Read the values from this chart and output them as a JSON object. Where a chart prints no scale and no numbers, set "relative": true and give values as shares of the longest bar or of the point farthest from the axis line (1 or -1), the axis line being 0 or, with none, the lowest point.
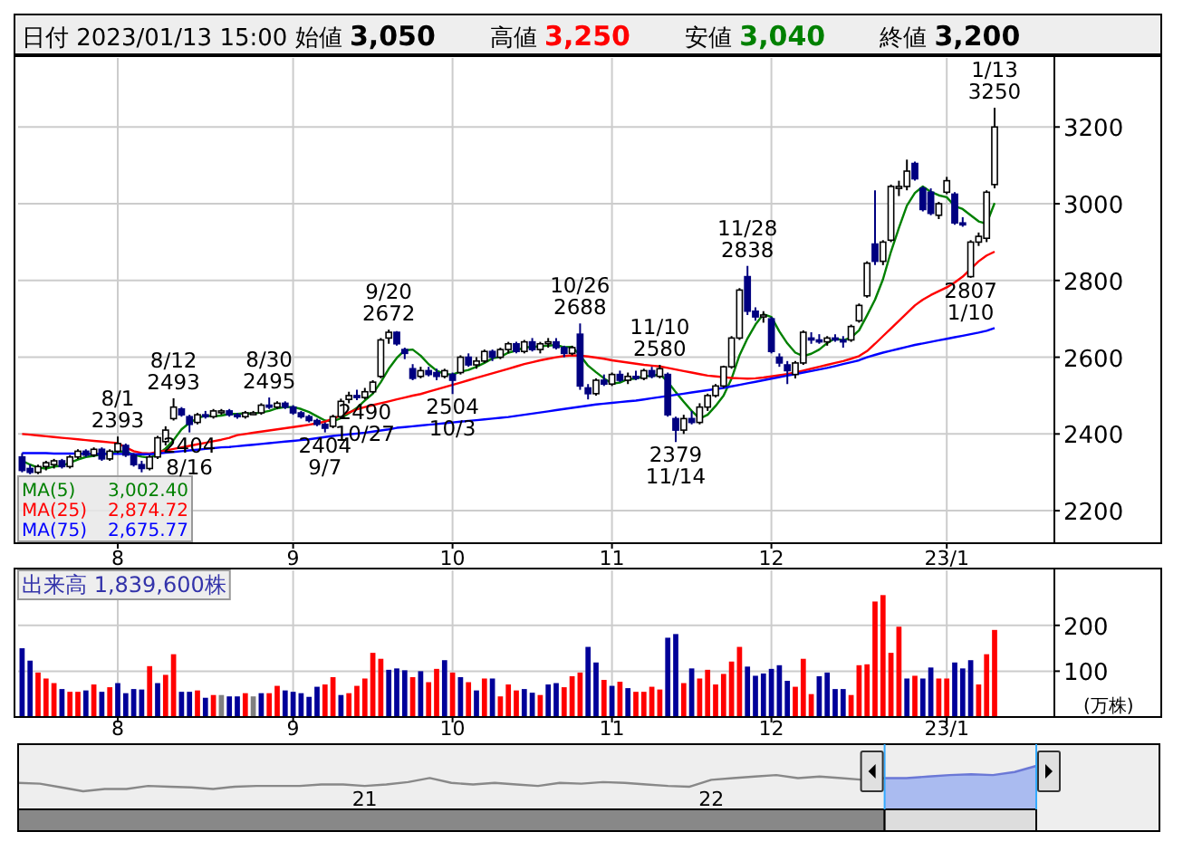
{
  "chart_data": [
    {
      "type": "candlestick",
      "title": "日付 2023/01/13 15:00 始値 3,050 高値 3,250 安値 3,040 終値 3,200",
      "categories": [
        null,
        null,
        null,
        null,
        null,
        null,
        null,
        null,
        null,
        null,
        null,
        null,
        "8",
        null,
        null,
        null,
        null,
        null,
        null,
        null,
        null,
        null,
        null,
        null,
        null,
        null,
        null,
        null,
        null,
        null,
        null,
        null,
        null,
        null,
        "9",
        null,
        null,
        null,
        null,
        null,
        null,
        null,
        null,
        null,
        null,
        null,
        null,
        null,
        null,
        null,
        null,
        null,
        null,
        null,
        "10",
        null,
        null,
        null,
        null,
        null,
        null,
        null,
        null,
        null,
        null,
        null,
        null,
        null,
        null,
        null,
        null,
        null,
        null,
        null,
        "11",
        null,
        null,
        null,
        null,
        null,
        null,
        null,
        null,
        null,
        null,
        null,
        null,
        null,
        null,
        null,
        null,
        null,
        null,
        null,
        "12",
        null,
        null,
        null,
        null,
        null,
        null,
        null,
        null,
        null,
        null,
        null,
        null,
        null,
        null,
        null,
        null,
        null,
        null,
        null,
        null,
        null,
        "23/1",
        null,
        null,
        null,
        null,
        null,
        null
      ],
      "ohlc": [
        [
          2340,
          2350,
          2300,
          2305
        ],
        [
          2310,
          2320,
          2295,
          2300
        ],
        [
          2300,
          2320,
          2295,
          2315
        ],
        [
          2315,
          2330,
          2305,
          2325
        ],
        [
          2320,
          2335,
          2310,
          2330
        ],
        [
          2330,
          2335,
          2310,
          2315
        ],
        [
          2315,
          2345,
          2310,
          2340
        ],
        [
          2340,
          2360,
          2335,
          2355
        ],
        [
          2355,
          2360,
          2340,
          2345
        ],
        [
          2345,
          2365,
          2340,
          2360
        ],
        [
          2360,
          2365,
          2330,
          2335
        ],
        [
          2335,
          2360,
          2330,
          2355
        ],
        [
          2355,
          2393,
          2350,
          2375
        ],
        [
          2370,
          2375,
          2340,
          2345
        ],
        [
          2345,
          2350,
          2315,
          2320
        ],
        [
          2320,
          2330,
          2300,
          2310
        ],
        [
          2310,
          2345,
          2305,
          2340
        ],
        [
          2340,
          2395,
          2335,
          2390
        ],
        [
          2380,
          2420,
          2370,
          2410
        ],
        [
          2440,
          2493,
          2435,
          2470
        ],
        [
          2465,
          2470,
          2445,
          2450
        ],
        [
          2445,
          2450,
          2404,
          2425
        ],
        [
          2430,
          2455,
          2425,
          2450
        ],
        [
          2450,
          2460,
          2440,
          2445
        ],
        [
          2445,
          2465,
          2440,
          2460
        ],
        [
          2460,
          2465,
          2450,
          2460
        ],
        [
          2460,
          2465,
          2445,
          2450
        ],
        [
          2450,
          2455,
          2440,
          2445
        ],
        [
          2445,
          2460,
          2440,
          2455
        ],
        [
          2455,
          2460,
          2450,
          2455
        ],
        [
          2455,
          2480,
          2450,
          2475
        ],
        [
          2475,
          2495,
          2465,
          2470
        ],
        [
          2470,
          2485,
          2465,
          2480
        ],
        [
          2480,
          2485,
          2465,
          2470
        ],
        [
          2470,
          2475,
          2450,
          2455
        ],
        [
          2455,
          2460,
          2440,
          2445
        ],
        [
          2445,
          2450,
          2430,
          2435
        ],
        [
          2435,
          2440,
          2420,
          2425
        ],
        [
          2425,
          2430,
          2404,
          2415
        ],
        [
          2420,
          2450,
          2415,
          2445
        ],
        [
          2445,
          2492,
          2440,
          2485
        ],
        [
          2490,
          2510,
          2480,
          2500
        ],
        [
          2500,
          2515,
          2488,
          2495
        ],
        [
          2495,
          2520,
          2490,
          2510
        ],
        [
          2510,
          2540,
          2505,
          2535
        ],
        [
          2550,
          2650,
          2545,
          2645
        ],
        [
          2650,
          2672,
          2635,
          2665
        ],
        [
          2665,
          2668,
          2630,
          2635
        ],
        [
          2620,
          2625,
          2595,
          2610
        ],
        [
          2570,
          2582,
          2540,
          2545
        ],
        [
          2550,
          2575,
          2545,
          2565
        ],
        [
          2565,
          2575,
          2550,
          2555
        ],
        [
          2560,
          2570,
          2540,
          2550
        ],
        [
          2550,
          2570,
          2545,
          2565
        ],
        [
          2555,
          2560,
          2504,
          2540
        ],
        [
          2560,
          2605,
          2555,
          2600
        ],
        [
          2600,
          2610,
          2575,
          2580
        ],
        [
          2580,
          2600,
          2570,
          2590
        ],
        [
          2590,
          2620,
          2585,
          2615
        ],
        [
          2615,
          2620,
          2590,
          2600
        ],
        [
          2600,
          2625,
          2595,
          2620
        ],
        [
          2620,
          2640,
          2610,
          2635
        ],
        [
          2635,
          2640,
          2610,
          2615
        ],
        [
          2615,
          2645,
          2610,
          2640
        ],
        [
          2640,
          2650,
          2615,
          2620
        ],
        [
          2620,
          2640,
          2610,
          2635
        ],
        [
          2635,
          2650,
          2625,
          2640
        ],
        [
          2640,
          2650,
          2620,
          2625
        ],
        [
          2625,
          2630,
          2600,
          2610
        ],
        [
          2610,
          2630,
          2605,
          2625
        ],
        [
          2660,
          2688,
          2515,
          2525
        ],
        [
          2520,
          2530,
          2490,
          2505
        ],
        [
          2505,
          2545,
          2500,
          2540
        ],
        [
          2540,
          2555,
          2525,
          2530
        ],
        [
          2530,
          2560,
          2525,
          2555
        ],
        [
          2555,
          2565,
          2535,
          2540
        ],
        [
          2540,
          2560,
          2530,
          2550
        ],
        [
          2550,
          2565,
          2540,
          2545
        ],
        [
          2545,
          2570,
          2540,
          2565
        ],
        [
          2565,
          2575,
          2545,
          2550
        ],
        [
          2550,
          2580,
          2545,
          2570
        ],
        [
          2555,
          2560,
          2445,
          2450
        ],
        [
          2440,
          2445,
          2379,
          2410
        ],
        [
          2410,
          2450,
          2400,
          2440
        ],
        [
          2440,
          2460,
          2425,
          2430
        ],
        [
          2430,
          2480,
          2425,
          2470
        ],
        [
          2470,
          2505,
          2460,
          2500
        ],
        [
          2500,
          2530,
          2495,
          2525
        ],
        [
          2525,
          2578,
          2520,
          2575
        ],
        [
          2575,
          2655,
          2570,
          2650
        ],
        [
          2650,
          2780,
          2645,
          2775
        ],
        [
          2810,
          2838,
          2710,
          2720
        ],
        [
          2720,
          2730,
          2695,
          2705
        ],
        [
          2705,
          2720,
          2690,
          2710
        ],
        [
          2700,
          2705,
          2610,
          2615
        ],
        [
          2600,
          2610,
          2575,
          2585
        ],
        [
          2580,
          2590,
          2530,
          2565
        ],
        [
          2555,
          2590,
          2545,
          2585
        ],
        [
          2585,
          2670,
          2580,
          2665
        ],
        [
          2650,
          2665,
          2635,
          2645
        ],
        [
          2645,
          2660,
          2635,
          2640
        ],
        [
          2640,
          2655,
          2630,
          2650
        ],
        [
          2650,
          2660,
          2640,
          2645
        ],
        [
          2645,
          2655,
          2625,
          2640
        ],
        [
          2645,
          2685,
          2640,
          2680
        ],
        [
          2695,
          2740,
          2690,
          2735
        ],
        [
          2760,
          2850,
          2755,
          2845
        ],
        [
          2895,
          3035,
          2840,
          2850
        ],
        [
          2850,
          2905,
          2840,
          2900
        ],
        [
          2905,
          3050,
          2900,
          3045
        ],
        [
          3040,
          3060,
          3020,
          3045
        ],
        [
          3045,
          3115,
          3035,
          3085
        ],
        [
          3105,
          3110,
          3060,
          3065
        ],
        [
          3040,
          3045,
          2980,
          2985
        ],
        [
          3030,
          3040,
          2970,
          2975
        ],
        [
          2970,
          3005,
          2960,
          3000
        ],
        [
          3030,
          3070,
          3025,
          3060
        ],
        [
          3025,
          3030,
          2945,
          2950
        ],
        [
          2950,
          2965,
          2940,
          2945
        ],
        [
          2810,
          2905,
          2807,
          2900
        ],
        [
          2900,
          2925,
          2890,
          2915
        ],
        [
          2910,
          3035,
          2900,
          3030
        ],
        [
          3050,
          3250,
          3040,
          3200
        ]
      ],
      "series": [
        {
          "name": "MA(5)",
          "type": "line",
          "color": "#008000",
          "values": [
            2330,
            2320,
            2312,
            2310,
            2315,
            2317,
            2325,
            2333,
            2340,
            2343,
            2347,
            2350,
            2354,
            2354,
            2346,
            2341,
            2338,
            2347,
            2362,
            2384,
            2412,
            2429,
            2441,
            2448,
            2446,
            2448,
            2452,
            2452,
            2454,
            2453,
            2456,
            2460,
            2467,
            2470,
            2470,
            2465,
            2457,
            2446,
            2435,
            2433,
            2441,
            2454,
            2468,
            2487,
            2505,
            2535,
            2570,
            2598,
            2618,
            2620,
            2604,
            2582,
            2565,
            2556,
            2555,
            2562,
            2567,
            2575,
            2585,
            2597,
            2601,
            2612,
            2617,
            2626,
            2626,
            2629,
            2630,
            2632,
            2626,
            2627,
            2605,
            2578,
            2561,
            2545,
            2531,
            2534,
            2543,
            2544,
            2551,
            2551,
            2556,
            2536,
            2509,
            2484,
            2460,
            2440,
            2450,
            2473,
            2500,
            2544,
            2605,
            2649,
            2685,
            2712,
            2705,
            2667,
            2636,
            2612,
            2603,
            2609,
            2620,
            2637,
            2649,
            2644,
            2651,
            2670,
            2709,
            2750,
            2803,
            2875,
            2937,
            2995,
            3028,
            3045,
            3031,
            3022,
            3017,
            2994,
            2986,
            2970,
            2954,
            2948,
            3002
          ]
        },
        {
          "name": "MA(25)",
          "type": "line",
          "color": "#ff0000",
          "values": [
            2400,
            2398,
            2396,
            2394,
            2392,
            2390,
            2388,
            2386,
            2384,
            2382,
            2380,
            2378,
            2376,
            2365,
            2355,
            2350,
            2349,
            2353,
            2357,
            2361,
            2365,
            2369,
            2373,
            2377,
            2381,
            2385,
            2390,
            2397,
            2400,
            2403,
            2406,
            2409,
            2412,
            2415,
            2418,
            2421,
            2424,
            2428,
            2432,
            2440,
            2448,
            2456,
            2464,
            2470,
            2475,
            2480,
            2485,
            2490,
            2495,
            2500,
            2504,
            2510,
            2516,
            2522,
            2528,
            2534,
            2540,
            2546,
            2552,
            2558,
            2564,
            2570,
            2576,
            2582,
            2587,
            2592,
            2596,
            2600,
            2603,
            2605,
            2604,
            2602,
            2599,
            2596,
            2592,
            2589,
            2586,
            2583,
            2580,
            2578,
            2576,
            2572,
            2568,
            2564,
            2560,
            2556,
            2552,
            2550,
            2548,
            2546,
            2545,
            2544,
            2545,
            2547,
            2550,
            2553,
            2556,
            2560,
            2565,
            2570,
            2575,
            2580,
            2585,
            2590,
            2596,
            2603,
            2616,
            2635,
            2655,
            2675,
            2695,
            2715,
            2735,
            2750,
            2762,
            2772,
            2782,
            2795,
            2810,
            2830,
            2850,
            2865,
            2875
          ]
        },
        {
          "name": "MA(75)",
          "type": "line",
          "color": "#0000ff",
          "values": [
            2350,
            2350,
            2350,
            2350,
            2349,
            2349,
            2349,
            2349,
            2348,
            2348,
            2348,
            2348,
            2348,
            2348,
            2347,
            2347,
            2347,
            2349,
            2351,
            2353,
            2355,
            2357,
            2359,
            2361,
            2363,
            2365,
            2366,
            2368,
            2370,
            2372,
            2374,
            2376,
            2378,
            2380,
            2382,
            2384,
            2386,
            2389,
            2392,
            2395,
            2397,
            2399,
            2401,
            2403,
            2406,
            2409,
            2412,
            2416,
            2418,
            2420,
            2422,
            2424,
            2426,
            2428,
            2430,
            2432,
            2434,
            2436,
            2438,
            2440,
            2442,
            2444,
            2447,
            2450,
            2453,
            2456,
            2459,
            2462,
            2465,
            2468,
            2471,
            2474,
            2477,
            2479,
            2481,
            2483,
            2485,
            2487,
            2490,
            2493,
            2496,
            2499,
            2502,
            2505,
            2508,
            2511,
            2514,
            2517,
            2520,
            2524,
            2528,
            2532,
            2536,
            2540,
            2544,
            2548,
            2552,
            2556,
            2560,
            2564,
            2568,
            2572,
            2577,
            2582,
            2587,
            2592,
            2600,
            2606,
            2612,
            2617,
            2622,
            2627,
            2632,
            2636,
            2640,
            2644,
            2648,
            2652,
            2656,
            2660,
            2664,
            2669,
            2676
          ]
        }
      ],
      "annotations": [
        "3,002.40",
        "2,874.72",
        "2,675.77",
        {
          "text": "8/1\n2393",
          "y": 2393
        },
        {
          "text": "8/12\n2493",
          "y": 2493
        },
        {
          "text": "2404\n8/16",
          "y": 2404
        },
        {
          "text": "8/30\n2495",
          "y": 2495
        },
        {
          "text": "2404\n9/7",
          "y": 2404
        },
        {
          "text": "9/20\n2672",
          "y": 2672
        },
        {
          "text": "2504\n10/3",
          "y": 2504
        },
        {
          "text": "10/26\n2688",
          "y": 2688
        },
        {
          "text": "2490\n10/27",
          "y": 2490
        },
        {
          "text": "11/10\n2580",
          "y": 2580
        },
        {
          "text": "2379\n11/14",
          "y": 2379
        },
        {
          "text": "11/28\n2838",
          "y": 2838
        },
        {
          "text": "2807\n1/10",
          "y": 2807
        },
        {
          "text": "1/13\n3250",
          "y": 3250
        }
      ],
      "ylim": [
        2120,
        3380
      ],
      "yticks": [
        2200,
        2400,
        2600,
        2800,
        3000,
        3200
      ],
      "grid": true,
      "legend": "bottom left"
    },
    {
      "type": "bar",
      "title": "出来高 1,839,600株",
      "ylabel": "(万株)",
      "categories": [
        null,
        null,
        null,
        null,
        null,
        null,
        null,
        null,
        null,
        null,
        null,
        null,
        "8",
        null,
        null,
        null,
        null,
        null,
        null,
        null,
        null,
        null,
        null,
        null,
        null,
        null,
        null,
        null,
        null,
        null,
        null,
        null,
        null,
        null,
        "9",
        null,
        null,
        null,
        null,
        null,
        null,
        null,
        null,
        null,
        null,
        null,
        null,
        null,
        null,
        null,
        null,
        null,
        null,
        null,
        "10",
        null,
        null,
        null,
        null,
        null,
        null,
        null,
        null,
        null,
        null,
        null,
        null,
        null,
        null,
        null,
        null,
        null,
        null,
        null,
        "11",
        null,
        null,
        null,
        null,
        null,
        null,
        null,
        null,
        null,
        null,
        null,
        null,
        null,
        null,
        null,
        null,
        null,
        null,
        null,
        "12",
        null,
        null,
        null,
        null,
        null,
        null,
        null,
        null,
        null,
        null,
        null,
        null,
        null,
        null,
        null,
        null,
        null,
        null,
        null,
        null,
        null,
        "23/1",
        null,
        null,
        null,
        null,
        null,
        null
      ],
      "values": [
        150,
        123,
        97,
        84,
        74,
        61,
        55,
        55,
        58,
        71,
        55,
        65,
        74,
        52,
        61,
        60,
        111,
        74,
        92,
        137,
        55,
        55,
        58,
        42,
        48,
        48,
        45,
        45,
        52,
        45,
        52,
        52,
        68,
        58,
        55,
        52,
        44,
        66,
        71,
        87,
        48,
        52,
        68,
        84,
        140,
        127,
        103,
        106,
        102,
        87,
        100,
        76,
        105,
        124,
        97,
        87,
        76,
        58,
        84,
        84,
        45,
        71,
        58,
        61,
        53,
        48,
        71,
        74,
        65,
        89,
        97,
        153,
        119,
        81,
        68,
        77,
        63,
        55,
        55,
        66,
        60,
        173,
        181,
        74,
        106,
        84,
        103,
        71,
        94,
        121,
        153,
        110,
        90,
        95,
        105,
        113,
        79,
        66,
        127,
        50,
        89,
        97,
        61,
        61,
        48,
        113,
        115,
        252,
        266,
        140,
        197,
        84,
        90,
        84,
        108,
        84,
        84,
        119,
        106,
        124,
        71,
        137,
        190
      ],
      "colors": [
        "#000099",
        "#000099",
        "#ff0000",
        "#ff0000",
        "#ff0000",
        "#000099",
        "#ff0000",
        "#ff0000",
        "#000099",
        "#ff0000",
        "#000099",
        "#ff0000",
        "#000099",
        "#000099",
        "#000099",
        "#000099",
        "#ff0000",
        "#000099",
        "#ff0000",
        "#ff0000",
        "#000099",
        "#000099",
        "#ff0000",
        "#000099",
        "#ff0000",
        "#808080",
        "#000099",
        "#000099",
        "#ff0000",
        "#808080",
        "#000099",
        "#ff0000",
        "#ff0000",
        "#000099",
        "#000099",
        "#000099",
        "#000099",
        "#000099",
        "#ff0000",
        "#ff0000",
        "#000099",
        "#ff0000",
        "#ff0000",
        "#ff0000",
        "#ff0000",
        "#ff0000",
        "#000099",
        "#000099",
        "#000099",
        "#ff0000",
        "#000099",
        "#ff0000",
        "#ff0000",
        "#000099",
        "#ff0000",
        "#000099",
        "#ff0000",
        "#000099",
        "#ff0000",
        "#000099",
        "#ff0000",
        "#ff0000",
        "#ff0000",
        "#000099",
        "#000099",
        "#ff0000",
        "#000099",
        "#000099",
        "#ff0000",
        "#ff0000",
        "#ff0000",
        "#000099",
        "#000099",
        "#ff0000",
        "#000099",
        "#ff0000",
        "#000099",
        "#ff0000",
        "#ff0000",
        "#ff0000",
        "#ff0000",
        "#000099",
        "#000099",
        "#ff0000",
        "#000099",
        "#ff0000",
        "#ff0000",
        "#ff0000",
        "#ff0000",
        "#ff0000",
        "#ff0000",
        "#000099",
        "#000099",
        "#000099",
        "#000099",
        "#000099",
        "#000099",
        "#ff0000",
        "#ff0000",
        "#ff0000",
        "#000099",
        "#000099",
        "#000099",
        "#000099",
        "#ff0000",
        "#ff0000",
        "#ff0000",
        "#ff0000",
        "#ff0000",
        "#ff0000",
        "#ff0000",
        "#000099",
        "#ff0000",
        "#000099",
        "#000099",
        "#ff0000",
        "#ff0000",
        "#000099",
        "#000099",
        "#000099",
        "#ff0000",
        "#ff0000",
        "#ff0000"
      ],
      "ylim": [
        0,
        320
      ],
      "yticks": [
        100,
        200
      ],
      "grid": true
    },
    {
      "type": "line",
      "relative": true,
      "categories": [
        null,
        null,
        null,
        null,
        null,
        null,
        null,
        null,
        null,
        null,
        null,
        null,
        null,
        null,
        null,
        null,
        "21",
        null,
        null,
        null,
        null,
        null,
        null,
        null,
        null,
        null,
        null,
        null,
        null,
        null,
        null,
        null,
        "22",
        null,
        null,
        null,
        null,
        null,
        null,
        null,
        null,
        null,
        null,
        null,
        null,
        null,
        null,
        null
      ],
      "series": [
        {
          "type": "line",
          "color": "#888888",
          "values": [
            0.33,
            0.3,
            0.15,
            0,
            0.09,
            0.09,
            0.21,
            0.18,
            0.15,
            0.09,
            0.18,
            0.21,
            0.21,
            0.21,
            0.27,
            0.27,
            0.21,
            0.27,
            0.36,
            0.52,
            0.33,
            0.27,
            0.33,
            0.27,
            0.21,
            0.33,
            0.3,
            0.36,
            0.33,
            0.27,
            0.21,
            0.18,
            0.45,
            0.52,
            0.58,
            0.64,
            0.52,
            0.58,
            0.52,
            0.45,
            0.52,
            null,
            null,
            null,
            null,
            null,
            null,
            null
          ]
        },
        {
          "type": "area",
          "color": "#6b78d6",
          "values": [
            null,
            null,
            null,
            null,
            null,
            null,
            null,
            null,
            null,
            null,
            null,
            null,
            null,
            null,
            null,
            null,
            null,
            null,
            null,
            null,
            null,
            null,
            null,
            null,
            null,
            null,
            null,
            null,
            null,
            null,
            null,
            null,
            null,
            null,
            null,
            null,
            null,
            null,
            null,
            null,
            0.52,
            0.52,
            0.58,
            0.64,
            0.67,
            0.64,
            0.76,
            1
          ]
        }
      ]
    }
  ]
}
